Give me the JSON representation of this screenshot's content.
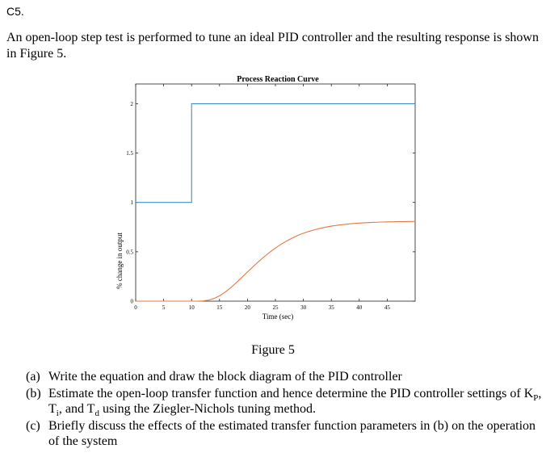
{
  "question_label": "C5.",
  "intro": "An open-loop step test is performed to tune an ideal PID controller and the resulting response is shown in Figure 5.",
  "figure_caption": "Figure 5",
  "questions": [
    {
      "label": "(a)",
      "text": "Write the equation and draw the block diagram of the PID controller"
    },
    {
      "label": "(b)",
      "text_parts": {
        "a": "Estimate the open-loop transfer function and hence determine the PID controller settings of K",
        "kp_sub": "P",
        "b": ", T",
        "ti_sub": "i",
        "c": ", and T",
        "td_sub": "d",
        "d": " using the Ziegler-Nichols tuning method."
      }
    },
    {
      "label": "(c)",
      "text": "Briefly discuss the effects of the estimated transfer function parameters in (b) on the operation of the system"
    }
  ],
  "chart_data": {
    "type": "line",
    "title": "Process Reaction Curve",
    "xlabel": "Time (sec)",
    "ylabel": "% change in output",
    "xlim": [
      0,
      50
    ],
    "ylim": [
      0,
      2.2
    ],
    "xticks": [
      0,
      5,
      10,
      15,
      20,
      25,
      30,
      35,
      40,
      45
    ],
    "yticks": [
      0,
      0.5,
      1,
      1.5,
      2
    ],
    "ytick_labels": [
      "0",
      "0.5",
      "1",
      "1.5",
      "2"
    ],
    "grid": false,
    "series": [
      {
        "color": "#3a90c6",
        "x": [
          0,
          10,
          10,
          50
        ],
        "y": [
          1,
          1,
          2,
          2
        ]
      },
      {
        "color": "#e07a45",
        "x": [
          0,
          10,
          11,
          12,
          13,
          14,
          15,
          16,
          17,
          18,
          19,
          20,
          21,
          22,
          23,
          24,
          25,
          26,
          27,
          28,
          29,
          30,
          31,
          32,
          33,
          34,
          35,
          36,
          37,
          38,
          39,
          40,
          41,
          42,
          43,
          44,
          45,
          46,
          47,
          48,
          49,
          50
        ],
        "y": [
          0,
          0,
          0.0001,
          0.0021,
          0.0101,
          0.0271,
          0.0543,
          0.0914,
          0.1365,
          0.187,
          0.2407,
          0.2954,
          0.3495,
          0.4016,
          0.4508,
          0.4966,
          0.5384,
          0.576,
          0.6096,
          0.6392,
          0.6652,
          0.6877,
          0.7071,
          0.7237,
          0.7378,
          0.7498,
          0.7599,
          0.7685,
          0.7756,
          0.7816,
          0.7866,
          0.7908,
          0.7942,
          0.7971,
          0.7995,
          0.8015,
          0.8031,
          0.8044,
          0.8055,
          0.8065,
          0.8072,
          0.8079
        ]
      }
    ]
  }
}
